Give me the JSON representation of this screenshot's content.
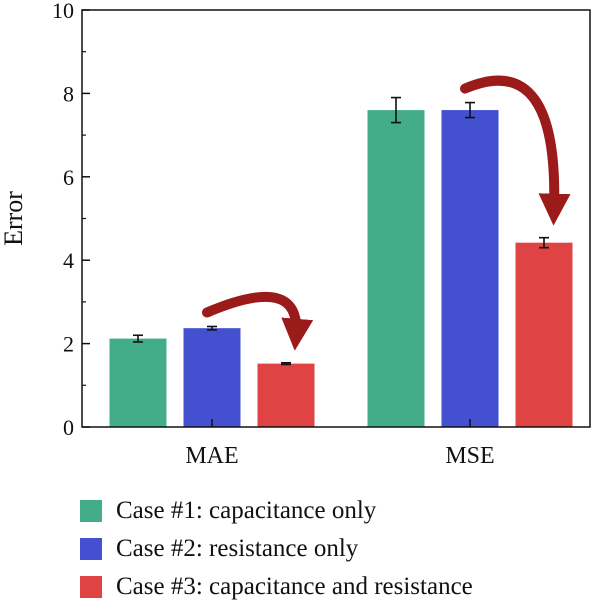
{
  "chart_data": {
    "type": "bar",
    "categories": [
      "MAE",
      "MSE"
    ],
    "ylabel": "Error",
    "ylim": [
      0,
      10
    ],
    "yticks": [
      0,
      2,
      4,
      6,
      8,
      10
    ],
    "series": [
      {
        "name": "Case #1: capacitance only",
        "color": "#43ad8a",
        "values": [
          2.12,
          7.6
        ],
        "errors": [
          0.08,
          0.3
        ]
      },
      {
        "name": "Case #2: resistance only",
        "color": "#4350d0",
        "values": [
          2.37,
          7.6
        ],
        "errors": [
          0.04,
          0.18
        ]
      },
      {
        "name": "Case #3: capacitance and resistance",
        "color": "#df4343",
        "values": [
          1.52,
          4.42
        ],
        "errors": [
          0.02,
          0.12
        ]
      }
    ],
    "legend_position": "bottom",
    "annotations": [
      {
        "type": "curved-arrow",
        "from_series": "Case #2: resistance only",
        "to_series": "Case #3: capacitance and resistance",
        "category": "MAE",
        "color": "#9b1a1a"
      },
      {
        "type": "curved-arrow",
        "from_series": "Case #2: resistance only",
        "to_series": "Case #3: capacitance and resistance",
        "category": "MSE",
        "color": "#9b1a1a"
      }
    ]
  }
}
